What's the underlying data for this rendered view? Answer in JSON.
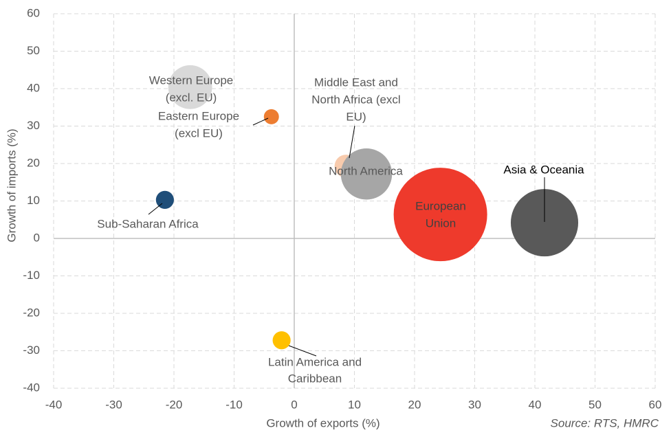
{
  "chart_data": {
    "type": "bubble",
    "xlabel": "Growth of exports (%)",
    "ylabel": "Growth of imports (%)",
    "source": "Source: RTS, HMRC",
    "xlim": [
      -40,
      60
    ],
    "xticks": [
      -40,
      -30,
      -20,
      -10,
      0,
      10,
      20,
      30,
      40,
      50,
      60
    ],
    "ylim": [
      -40,
      60
    ],
    "yticks": [
      -40,
      -30,
      -20,
      -10,
      0,
      10,
      20,
      30,
      40,
      50,
      60
    ],
    "grid": true,
    "series": [
      {
        "label": [
          "Western Europe",
          "(excl. EU)"
        ],
        "color": "#d9d9d9",
        "x": -17.3,
        "y": 40.4,
        "size": 22
      },
      {
        "label": [
          "Eastern Europe",
          "(excl EU)"
        ],
        "color": "#ed7d31",
        "x": -3.8,
        "y": 32.5,
        "size": 2.6
      },
      {
        "label": [
          "Middle East and",
          "North Africa (excl",
          "EU)"
        ],
        "color": "#f8cbad",
        "x": 8.6,
        "y": 19.3,
        "size": 6
      },
      {
        "label": [
          "North America"
        ],
        "color": "#a6a6a6",
        "x": 12,
        "y": 17.2,
        "size": 30
      },
      {
        "label": [
          "European",
          "Union"
        ],
        "color": "#ee3a2c",
        "x": 24.3,
        "y": 6.4,
        "size": 100
      },
      {
        "label": [
          "Asia & Oceania"
        ],
        "color": "#595959",
        "x": 41.6,
        "y": 4.2,
        "size": 52
      },
      {
        "label": [
          "Sub-Saharan Africa"
        ],
        "color": "#1f4e79",
        "x": -21.5,
        "y": 10.3,
        "size": 3.7
      },
      {
        "label": [
          "Latin America and",
          "Caribbean"
        ],
        "color": "#ffc000",
        "x": -2.1,
        "y": -27.2,
        "size": 3.7
      }
    ]
  }
}
